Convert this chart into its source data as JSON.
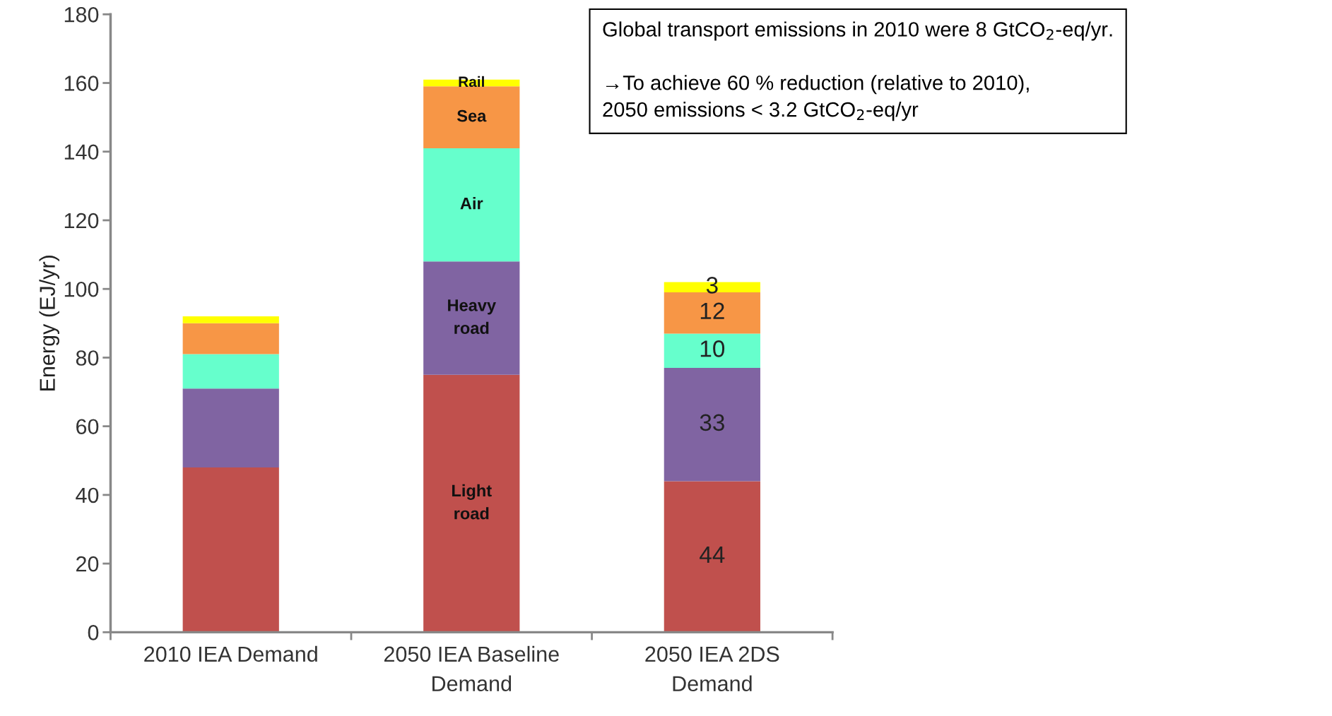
{
  "chart_data": {
    "type": "bar",
    "stacked": true,
    "ylabel": "Energy (EJ/yr)",
    "categories": [
      "2010 IEA Demand",
      "2050 IEA Baseline\nDemand",
      "2050 IEA 2DS\nDemand"
    ],
    "series": [
      {
        "name": "Light\nroad",
        "color": "#c0504d",
        "values": [
          48,
          75,
          44
        ],
        "value_labels": [
          null,
          null,
          "44"
        ]
      },
      {
        "name": "Heavy\nroad",
        "color": "#8064a2",
        "values": [
          23,
          33,
          33
        ],
        "value_labels": [
          null,
          null,
          "33"
        ]
      },
      {
        "name": "Air",
        "color": "#66ffcc",
        "values": [
          10,
          33,
          10
        ],
        "value_labels": [
          null,
          null,
          "10"
        ]
      },
      {
        "name": "Sea",
        "color": "#f79646",
        "values": [
          9,
          18,
          12
        ],
        "value_labels": [
          null,
          null,
          "12"
        ]
      },
      {
        "name": "Rail",
        "color": "#ffff00",
        "values": [
          2,
          2,
          3
        ],
        "value_labels": [
          null,
          null,
          "3"
        ]
      }
    ],
    "ylim": [
      0,
      180
    ],
    "yticks": [
      0,
      20,
      40,
      60,
      80,
      100,
      120,
      140,
      160,
      180
    ],
    "grid": false,
    "legend": false,
    "annotations": [
      "Global transport emissions in 2010 were 8 GtCO$_{2}$-eq/yr.",
      "→To achieve 60 % reduction (relative to 2010),\n2050 emissions < 3.2 GtCO$_{2}$-eq/yr"
    ]
  }
}
